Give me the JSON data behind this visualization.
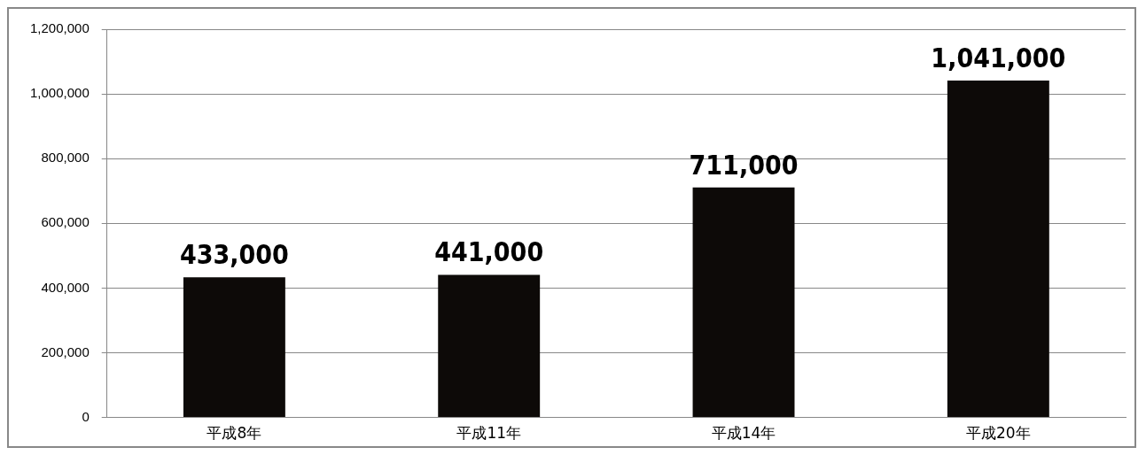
{
  "chart_data": {
    "type": "bar",
    "categories": [
      "平成8年",
      "平成11年",
      "平成14年",
      "平成20年"
    ],
    "values": [
      433000,
      441000,
      711000,
      1041000
    ],
    "color": "#0d0a08",
    "value_labels": [
      "433,000",
      "441,000",
      "711,000",
      "1,041,000"
    ],
    "ylim": [
      0,
      1200000
    ],
    "yticks": [
      0,
      {
        "value": 200000,
        "label": "200,000"
      },
      {
        "value": 400000,
        "label": "400,000"
      },
      {
        "value": 600000,
        "label": "600,000"
      },
      {
        "value": 800000,
        "label": "800,000"
      },
      {
        "value": 1000000,
        "label": "1,000,000"
      },
      {
        "value": 1200000,
        "label": "1,200,000"
      }
    ],
    "grid": "y",
    "legend": false
  }
}
